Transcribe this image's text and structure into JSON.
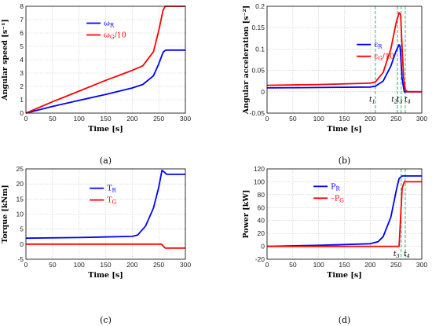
{
  "chart_data": [
    {
      "type": "line",
      "panel_label": "(a)",
      "xlabel": "Time [s]",
      "ylabel": "Angular speed [s⁻¹]",
      "xlim": [
        0,
        300
      ],
      "ylim": [
        0,
        8
      ],
      "xticks": [
        "0",
        "50",
        "100",
        "150",
        "200",
        "250",
        "300"
      ],
      "yticks": [
        "0",
        "1",
        "2",
        "3",
        "4",
        "5",
        "6",
        "7",
        "8"
      ],
      "grid": true,
      "legend_position": "top-center",
      "series": [
        {
          "name": "ωR",
          "main": "ω",
          "sub": "R",
          "suffix": "",
          "color": "#0000ff",
          "x": [
            0,
            50,
            100,
            150,
            200,
            220,
            240,
            250,
            258,
            262,
            265,
            300
          ],
          "y": [
            0,
            0.5,
            0.95,
            1.4,
            1.88,
            2.15,
            2.8,
            3.7,
            4.55,
            4.7,
            4.72,
            4.72
          ]
        },
        {
          "name": "ωG/10",
          "main": "ω",
          "sub": "G",
          "suffix": "/10",
          "color": "#ff0000",
          "x": [
            0,
            50,
            100,
            150,
            200,
            220,
            240,
            250,
            258,
            262,
            265,
            300
          ],
          "y": [
            0,
            0.85,
            1.65,
            2.45,
            3.2,
            3.55,
            4.6,
            6.2,
            7.7,
            8.0,
            8.0,
            8.0
          ]
        }
      ]
    },
    {
      "type": "line",
      "panel_label": "(b)",
      "xlabel": "Time [s]",
      "ylabel": "Angular acceleration [s⁻²]",
      "xlim": [
        0,
        300
      ],
      "ylim": [
        -0.05,
        0.2
      ],
      "xticks": [
        "0",
        "50",
        "100",
        "150",
        "200",
        "250",
        "300"
      ],
      "yticks": [
        "-0.05",
        "0",
        "0.05",
        "0.1",
        "0.15",
        "0.2"
      ],
      "grid": true,
      "legend_position": "center-right",
      "event_lines": {
        "color": "#3cb371",
        "x": [
          210,
          253,
          260,
          268
        ],
        "labels": [
          "t1",
          "t2",
          "t3",
          "t4"
        ]
      },
      "series": [
        {
          "name": "εR",
          "main": "ε",
          "sub": "R",
          "suffix": "",
          "color": "#0000ff",
          "x": [
            0,
            100,
            200,
            210,
            225,
            240,
            250,
            256,
            258,
            262,
            266,
            270,
            300
          ],
          "y": [
            0.009,
            0.01,
            0.011,
            0.013,
            0.025,
            0.06,
            0.095,
            0.11,
            0.105,
            0.03,
            0,
            0,
            0
          ]
        },
        {
          "name": "εG/10",
          "main": "ε",
          "sub": "G",
          "suffix": "/10",
          "color": "#ff0000",
          "x": [
            0,
            100,
            200,
            210,
            225,
            240,
            250,
            256,
            259,
            262,
            265,
            268,
            272,
            300
          ],
          "y": [
            0.015,
            0.017,
            0.02,
            0.023,
            0.045,
            0.1,
            0.16,
            0.185,
            0.18,
            0.1,
            0.03,
            0.005,
            0,
            0
          ]
        }
      ]
    },
    {
      "type": "line",
      "panel_label": "(c)",
      "xlabel": "Time [s]",
      "ylabel": "Torque [kNm]",
      "xlim": [
        0,
        300
      ],
      "ylim": [
        -5,
        25
      ],
      "xticks": [
        "0",
        "50",
        "100",
        "150",
        "200",
        "250",
        "300"
      ],
      "yticks": [
        "-5",
        "0",
        "5",
        "10",
        "15",
        "20",
        "25"
      ],
      "grid": true,
      "legend_position": "top-center",
      "series": [
        {
          "name": "TR",
          "main": "T",
          "sub": "R",
          "suffix": "",
          "color": "#0000ff",
          "x": [
            0,
            100,
            200,
            210,
            225,
            240,
            250,
            256,
            260,
            265,
            300
          ],
          "y": [
            2,
            2.2,
            2.6,
            3,
            6,
            12,
            19,
            24.5,
            24,
            23.2,
            23.2
          ]
        },
        {
          "name": "TG",
          "main": "T",
          "sub": "G",
          "suffix": "",
          "color": "#ff0000",
          "x": [
            0,
            255,
            262,
            265,
            300
          ],
          "y": [
            0,
            0,
            -1.3,
            -1.3,
            -1.3
          ]
        }
      ]
    },
    {
      "type": "line",
      "panel_label": "(d)",
      "xlabel": "Time [s]",
      "ylabel": "Power [kW]",
      "xlim": [
        0,
        300
      ],
      "ylim": [
        -20,
        120
      ],
      "xticks": [
        "0",
        "50",
        "100",
        "150",
        "200",
        "250",
        "300"
      ],
      "yticks": [
        "-20",
        "0",
        "20",
        "40",
        "60",
        "80",
        "100",
        "120"
      ],
      "grid": true,
      "legend_position": "center-left",
      "event_lines": {
        "color": "#3cb371",
        "x": [
          260,
          268
        ],
        "labels": [
          "t3",
          "t4"
        ]
      },
      "series": [
        {
          "name": "PR",
          "main": "P",
          "sub": "R",
          "suffix": "",
          "color": "#0000ff",
          "x": [
            0,
            100,
            200,
            215,
            225,
            240,
            250,
            256,
            262,
            265,
            300
          ],
          "y": [
            0,
            1.5,
            4,
            7,
            15,
            45,
            85,
            105,
            109,
            109,
            109
          ]
        },
        {
          "name": "-PG",
          "main": "–P",
          "sub": "G",
          "suffix": "",
          "color": "#ff0000",
          "x": [
            0,
            256,
            258,
            262,
            266,
            300
          ],
          "y": [
            0,
            0,
            30,
            90,
            100,
            100
          ]
        }
      ]
    }
  ]
}
